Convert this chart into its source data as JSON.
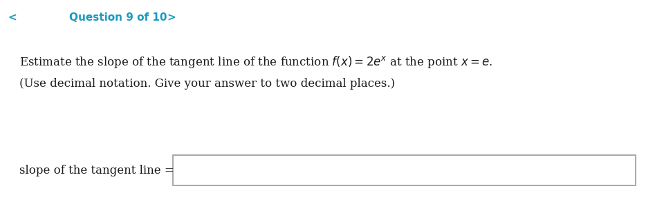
{
  "background_color": "#ffffff",
  "header_background": "#eeeeee",
  "header_text": "Question 9 of 10",
  "header_color": "#1a9bbf",
  "header_fontsize": 11,
  "body_fontsize": 12,
  "label_fontsize": 12,
  "line2": "(Use decimal notation. Give your answer to two decimal places.)",
  "label_text": "slope of the tangent line =",
  "box_edge_color": "#999999",
  "chevron_left": "<",
  "chevron_right": ">",
  "text_color": "#1a1a1a"
}
